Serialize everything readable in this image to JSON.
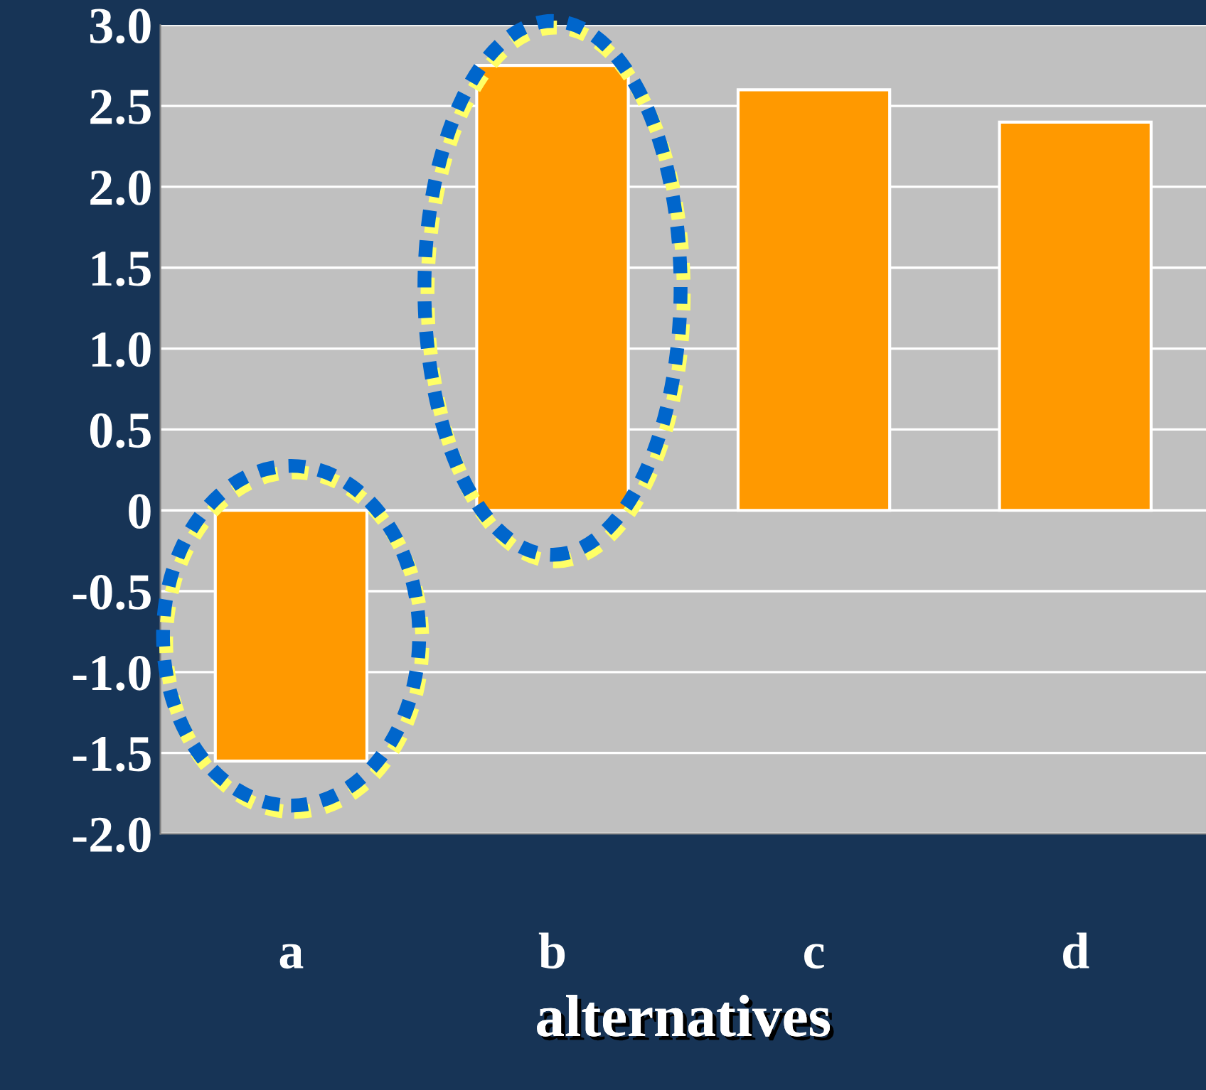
{
  "chart_data": {
    "type": "bar",
    "xlabel": "alternatives",
    "categories": [
      "a",
      "b",
      "c",
      "d"
    ],
    "values": [
      -1.55,
      2.75,
      2.6,
      2.4
    ],
    "color": "#ff9900",
    "ylim": [
      -2.0,
      3.0
    ],
    "yticks": [
      {
        "value": -2.0,
        "label": "-2.0"
      },
      {
        "value": -1.5,
        "label": "-1.5"
      },
      {
        "value": -1.0,
        "label": "-1.0"
      },
      {
        "value": -0.5,
        "label": "-0.5"
      },
      0,
      {
        "value": 0.5,
        "label": "0.5"
      },
      {
        "value": 1.0,
        "label": "1.0"
      },
      {
        "value": 1.5,
        "label": "1.5"
      },
      {
        "value": 2.0,
        "label": "2.0"
      },
      {
        "value": 2.5,
        "label": "2.5"
      },
      {
        "value": 3.0,
        "label": "3.0"
      }
    ],
    "grid": "y"
  }
}
